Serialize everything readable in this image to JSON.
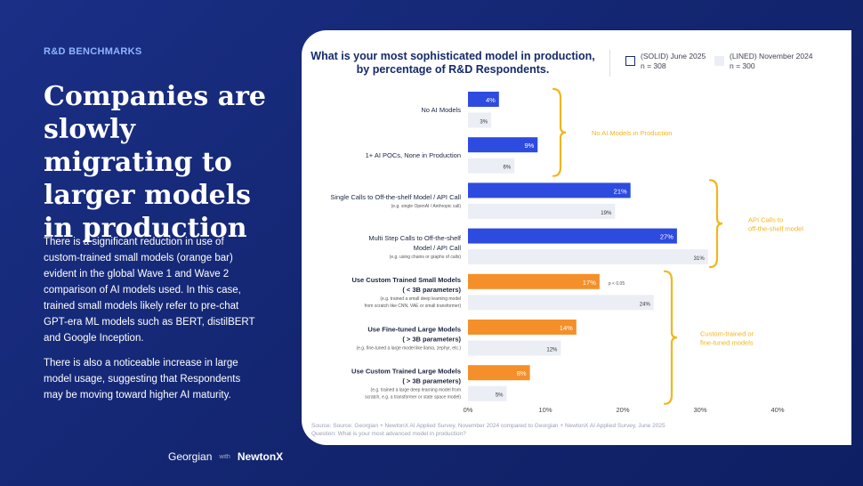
{
  "page": {
    "section_label": "R&D BENCHMARKS",
    "headline": "Companies are slowly migrating to larger models in production",
    "paragraph_1": "There is a significant reduction in use of custom-trained small models (orange bar) evident in the global Wave 1 and Wave 2 comparison of AI models used. In this case, trained small models likely refer to pre-chat GPT-era ML models such as BERT, distilBERT and Google Inception.",
    "paragraph_2": "There is also a noticeable increase in large model usage, suggesting that Respondents may be moving toward higher AI maturity.",
    "logo_1": "Georgian",
    "logo_sep": "with",
    "logo_2": "NewtonX"
  },
  "colors": {
    "background": "#14287a",
    "solid_blue": "#2e4be0",
    "solid_orange": "#f58f2a",
    "lined_bar": "#eceef6",
    "brace": "#f2b61c",
    "axis_text": "#444444"
  },
  "chart_data": {
    "type": "bar",
    "orientation": "horizontal",
    "title": "What is your most sophisticated model in production, by percentage of R&D Respondents.",
    "title_line_1": "What is your most sophisticated model in production,",
    "title_line_2": "by percentage of R&D Respondents.",
    "xlim": [
      0,
      40
    ],
    "x_ticks": [
      "0%",
      "10%",
      "20%",
      "30%",
      "40%"
    ],
    "grid": false,
    "legend": [
      {
        "label": "(SOLID) June 2025",
        "n": "n = 308",
        "style": "solid"
      },
      {
        "label": "(LINED) November 2024",
        "n": "n = 300",
        "style": "lined"
      }
    ],
    "categories": [
      {
        "label_lines": [
          "No AI Models"
        ],
        "sub": "",
        "bold": false
      },
      {
        "label_lines": [
          "1+ AI POCs, None in Production"
        ],
        "sub": "",
        "bold": false
      },
      {
        "label_lines": [
          "Single Calls to Off-the-shelf Model / API Call"
        ],
        "sub": "(e.g. single OpenAI / Anthropic call)",
        "bold": false
      },
      {
        "label_lines": [
          "Multi Step Calls to Off-the-shelf",
          "Model / API Call"
        ],
        "sub": "(e.g. using chains or graphs of calls)",
        "bold": false
      },
      {
        "label_lines": [
          "Use Custom Trained Small Models",
          "( < 3B parameters)"
        ],
        "sub": "(e.g. trained a small deep learning model from scratch like CNN, VAE or small transformer)",
        "sub_lines": [
          "(e.g. trained a small deep learning model",
          "from scratch like CNN, VAE or small transformer)"
        ],
        "bold": true
      },
      {
        "label_lines": [
          "Use Fine-tuned Large Models",
          "( > 3B parameters)"
        ],
        "sub": "(e.g. fine-tuned a large model like llama, zephyr, etc.)",
        "bold": true
      },
      {
        "label_lines": [
          "Use Custom Trained Large Models",
          "( > 3B parameters)"
        ],
        "sub": "(e.g. trained a large deep learning model from scratch, e.g. a transformer or state space model)",
        "sub_lines": [
          "(e.g. trained a large deep learning model from",
          "scratch, e.g. a transformer or state space model)"
        ],
        "bold": true
      }
    ],
    "series": [
      {
        "name": "June 2025",
        "style": "solid",
        "values": [
          4,
          9,
          21,
          27,
          17,
          14,
          8
        ],
        "colors": [
          "blue",
          "blue",
          "blue",
          "blue",
          "orange",
          "orange",
          "orange"
        ]
      },
      {
        "name": "November 2024",
        "style": "lined",
        "values": [
          3,
          6,
          19,
          31,
          24,
          12,
          5
        ]
      }
    ],
    "value_labels_solid": [
      "4%",
      "9%",
      "21%",
      "27%",
      "17%",
      "14%",
      "8%"
    ],
    "value_labels_lined": [
      "3%",
      "6%",
      "19%",
      "31%",
      "24%",
      "12%",
      "5%"
    ],
    "annotations": [
      {
        "text": "p < 0.05",
        "near_category": 4
      }
    ],
    "groups": [
      {
        "label_lines": [
          "No AI Models in Production"
        ],
        "categories": [
          0,
          1
        ]
      },
      {
        "label_lines": [
          "API Calls to",
          "off-the-shelf model"
        ],
        "categories": [
          2,
          3
        ]
      },
      {
        "label_lines": [
          "Custom-trained or",
          "fine-tuned models"
        ],
        "categories": [
          4,
          5,
          6
        ]
      }
    ],
    "source_lines": [
      "Source: Source: Georgian + NewtonX AI Applied Survey, November 2024 compared to Georgian + NewtonX AI Applied Survey, June 2025",
      "Question: What is your most advanced model in production?"
    ]
  }
}
